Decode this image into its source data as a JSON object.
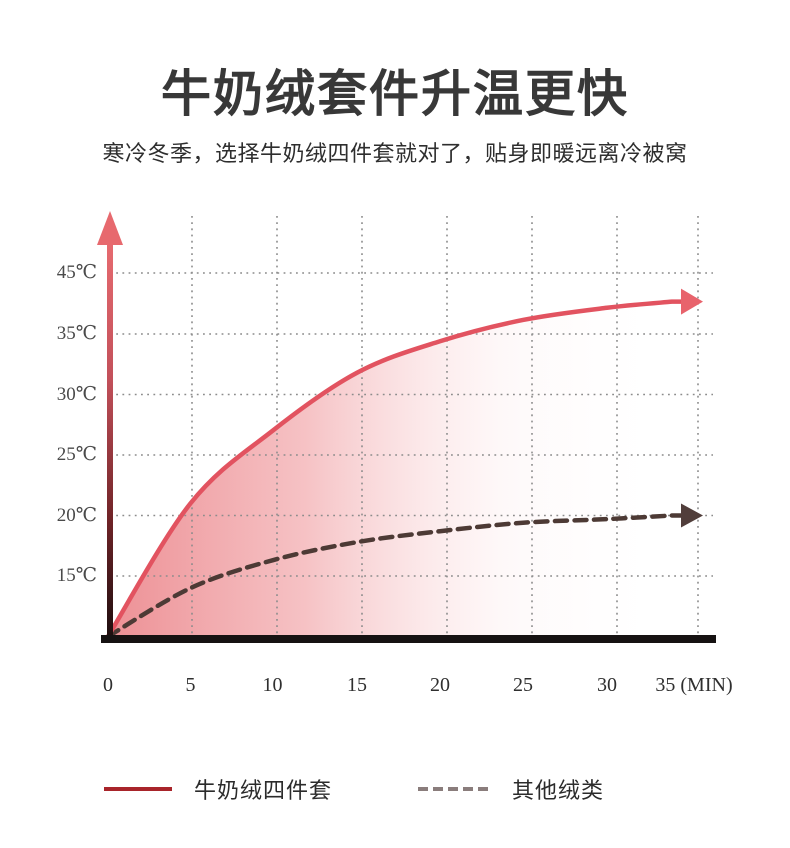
{
  "header": {
    "title": "牛奶绒套件升温更快",
    "subtitle": "寒冷冬季，选择牛奶绒四件套就对了，贴身即暖远离冷被窝"
  },
  "chart_data": {
    "type": "line",
    "title": "牛奶绒套件升温更快",
    "subtitle": "寒冷冬季，选择牛奶绒四件套就对了，贴身即暖远离冷被窝",
    "x": [
      0,
      5,
      10,
      15,
      20,
      25,
      30,
      35
    ],
    "x_unit": "(MIN)",
    "x_tick_labels": [
      "0",
      "5",
      "10",
      "15",
      "20",
      "25",
      "30",
      "35 (MIN)"
    ],
    "y_tick_labels": [
      "45℃",
      "35℃",
      "30℃",
      "25℃",
      "20℃",
      "15℃"
    ],
    "y_tick_values": [
      45,
      35,
      30,
      25,
      20,
      15
    ],
    "xlim": [
      0,
      38
    ],
    "ylim": [
      10,
      48
    ],
    "grid": true,
    "grid_style": "dotted",
    "legend_position": "bottom",
    "y_axis_style": "red gradient arrow pointing up",
    "x_axis_style": "thick black baseline",
    "series": [
      {
        "name": "牛奶绒四件套",
        "style": "solid",
        "color": "#a8242a",
        "curve_color": "#e25360",
        "arrow_color": "#e8636c",
        "fill": "pink gradient fading to white toward the right",
        "arrow": true,
        "values": [
          10,
          21,
          27,
          31.8,
          34.4,
          37.3,
          39.3,
          40.3
        ]
      },
      {
        "name": "其他绒类",
        "style": "dashed",
        "color": "#8a7d7c",
        "curve_color": "#4d3a35",
        "arrow_color": "#513e3b",
        "arrow": true,
        "values": [
          10,
          14,
          16.3,
          17.8,
          18.7,
          19.4,
          19.7,
          20
        ]
      }
    ]
  }
}
